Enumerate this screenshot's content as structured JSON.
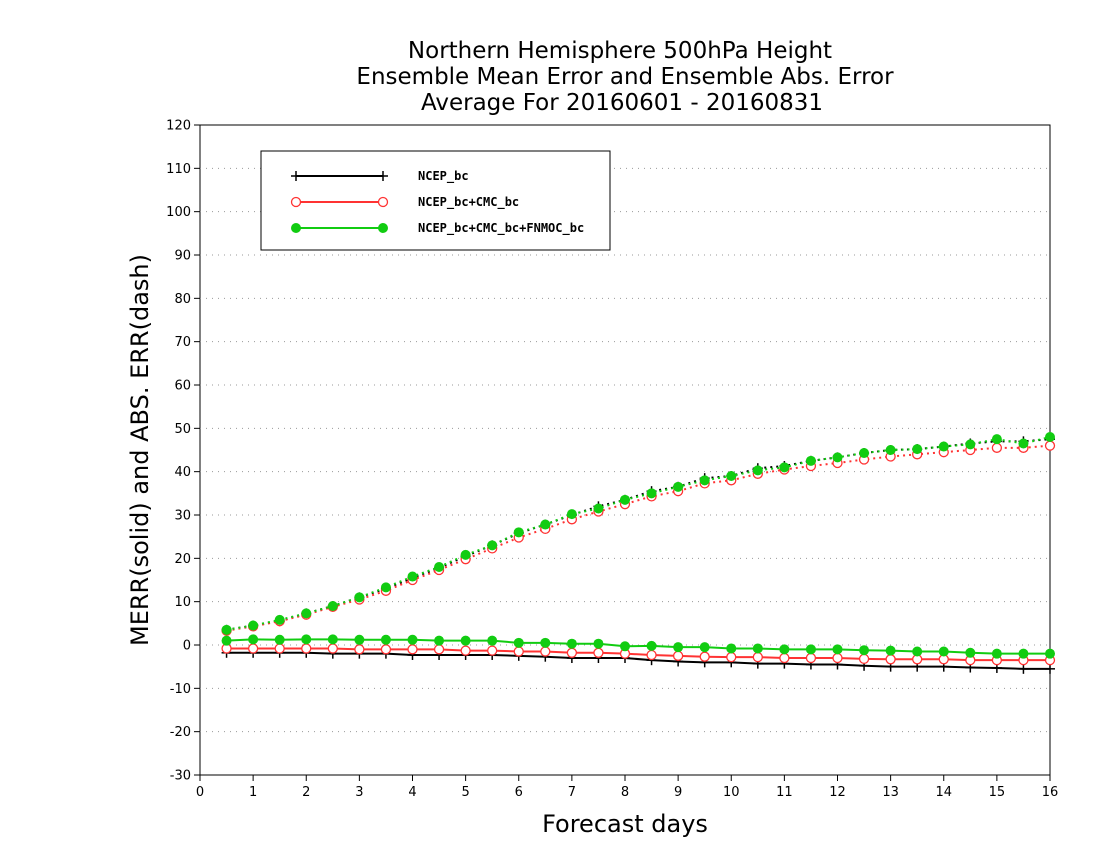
{
  "chart_data": {
    "type": "line",
    "title_lines": [
      "Northern Hemisphere 500hPa Height",
      "Ensemble Mean Error and Ensemble Abs. Error",
      "Average For 20160601 - 20160831"
    ],
    "xlabel": "Forecast days",
    "ylabel": "MERR(solid) and ABS. ERR(dash)",
    "xlim": [
      0,
      16
    ],
    "ylim": [
      -30,
      120
    ],
    "x_ticks": [
      0,
      1,
      2,
      3,
      4,
      5,
      6,
      7,
      8,
      9,
      10,
      11,
      12,
      13,
      14,
      15,
      16
    ],
    "y_ticks": [
      -30,
      -20,
      -10,
      0,
      10,
      20,
      30,
      40,
      50,
      60,
      70,
      80,
      90,
      100,
      110,
      120
    ],
    "grid": "horizontal dotted",
    "legend_position": "top-left",
    "x": [
      0.5,
      1,
      1.5,
      2,
      2.5,
      3,
      3.5,
      4,
      4.5,
      5,
      5.5,
      6,
      6.5,
      7,
      7.5,
      8,
      8.5,
      9,
      9.5,
      10,
      10.5,
      11,
      11.5,
      12,
      12.5,
      13,
      13.5,
      14,
      14.5,
      15,
      15.5,
      16
    ],
    "series": [
      {
        "name": "NCEP_bc",
        "color": "#000000",
        "marker": "plus",
        "merr": [
          -1.8,
          -1.8,
          -1.8,
          -1.8,
          -2.0,
          -2.0,
          -2.0,
          -2.3,
          -2.3,
          -2.3,
          -2.3,
          -2.5,
          -2.7,
          -3.0,
          -3.0,
          -3.0,
          -3.5,
          -3.8,
          -4.0,
          -4.0,
          -4.3,
          -4.3,
          -4.5,
          -4.5,
          -4.8,
          -5.0,
          -5.0,
          -5.0,
          -5.2,
          -5.3,
          -5.5,
          -5.5
        ],
        "abs_err": [
          3.5,
          4.5,
          5.5,
          7.3,
          9.0,
          11.0,
          13.0,
          15.5,
          17.8,
          20.5,
          23.0,
          25.8,
          27.8,
          30.0,
          32.0,
          33.5,
          35.5,
          36.5,
          38.5,
          39.0,
          40.8,
          41.3,
          42.5,
          43.3,
          44.3,
          45.0,
          45.2,
          45.8,
          46.5,
          47.0,
          47.0,
          47.5
        ]
      },
      {
        "name": "NCEP_bc+CMC_bc",
        "color": "#ff3333",
        "marker": "open-circle",
        "merr": [
          -0.8,
          -0.8,
          -0.8,
          -0.8,
          -0.8,
          -1.0,
          -1.0,
          -1.0,
          -1.0,
          -1.3,
          -1.3,
          -1.5,
          -1.5,
          -1.8,
          -1.8,
          -2.0,
          -2.3,
          -2.5,
          -2.7,
          -2.8,
          -2.8,
          -3.0,
          -3.0,
          -3.0,
          -3.2,
          -3.3,
          -3.3,
          -3.3,
          -3.5,
          -3.5,
          -3.5,
          -3.5
        ],
        "abs_err": [
          3.3,
          4.3,
          5.5,
          7.0,
          8.8,
          10.5,
          12.5,
          15.0,
          17.3,
          19.8,
          22.3,
          24.8,
          26.8,
          29.0,
          30.8,
          32.5,
          34.3,
          35.5,
          37.3,
          38.0,
          39.5,
          40.5,
          41.3,
          42.0,
          42.8,
          43.5,
          44.0,
          44.5,
          45.0,
          45.5,
          45.5,
          46.0
        ]
      },
      {
        "name": "NCEP_bc+CMC_bc+FNMOC_bc",
        "color": "#11cc11",
        "marker": "filled-circle",
        "merr": [
          1.0,
          1.3,
          1.2,
          1.3,
          1.3,
          1.2,
          1.2,
          1.2,
          1.0,
          1.0,
          1.0,
          0.5,
          0.5,
          0.3,
          0.3,
          -0.3,
          -0.2,
          -0.5,
          -0.5,
          -0.8,
          -0.8,
          -1.0,
          -1.0,
          -1.0,
          -1.2,
          -1.3,
          -1.5,
          -1.5,
          -1.8,
          -2.0,
          -2.0,
          -2.0
        ],
        "abs_err": [
          3.5,
          4.5,
          5.8,
          7.3,
          9.0,
          11.0,
          13.3,
          15.8,
          18.0,
          20.8,
          23.0,
          26.0,
          27.8,
          30.2,
          31.5,
          33.5,
          35.0,
          36.5,
          38.0,
          39.0,
          40.3,
          41.0,
          42.5,
          43.3,
          44.3,
          45.0,
          45.2,
          45.8,
          46.3,
          47.5,
          46.5,
          48.0
        ]
      }
    ]
  }
}
